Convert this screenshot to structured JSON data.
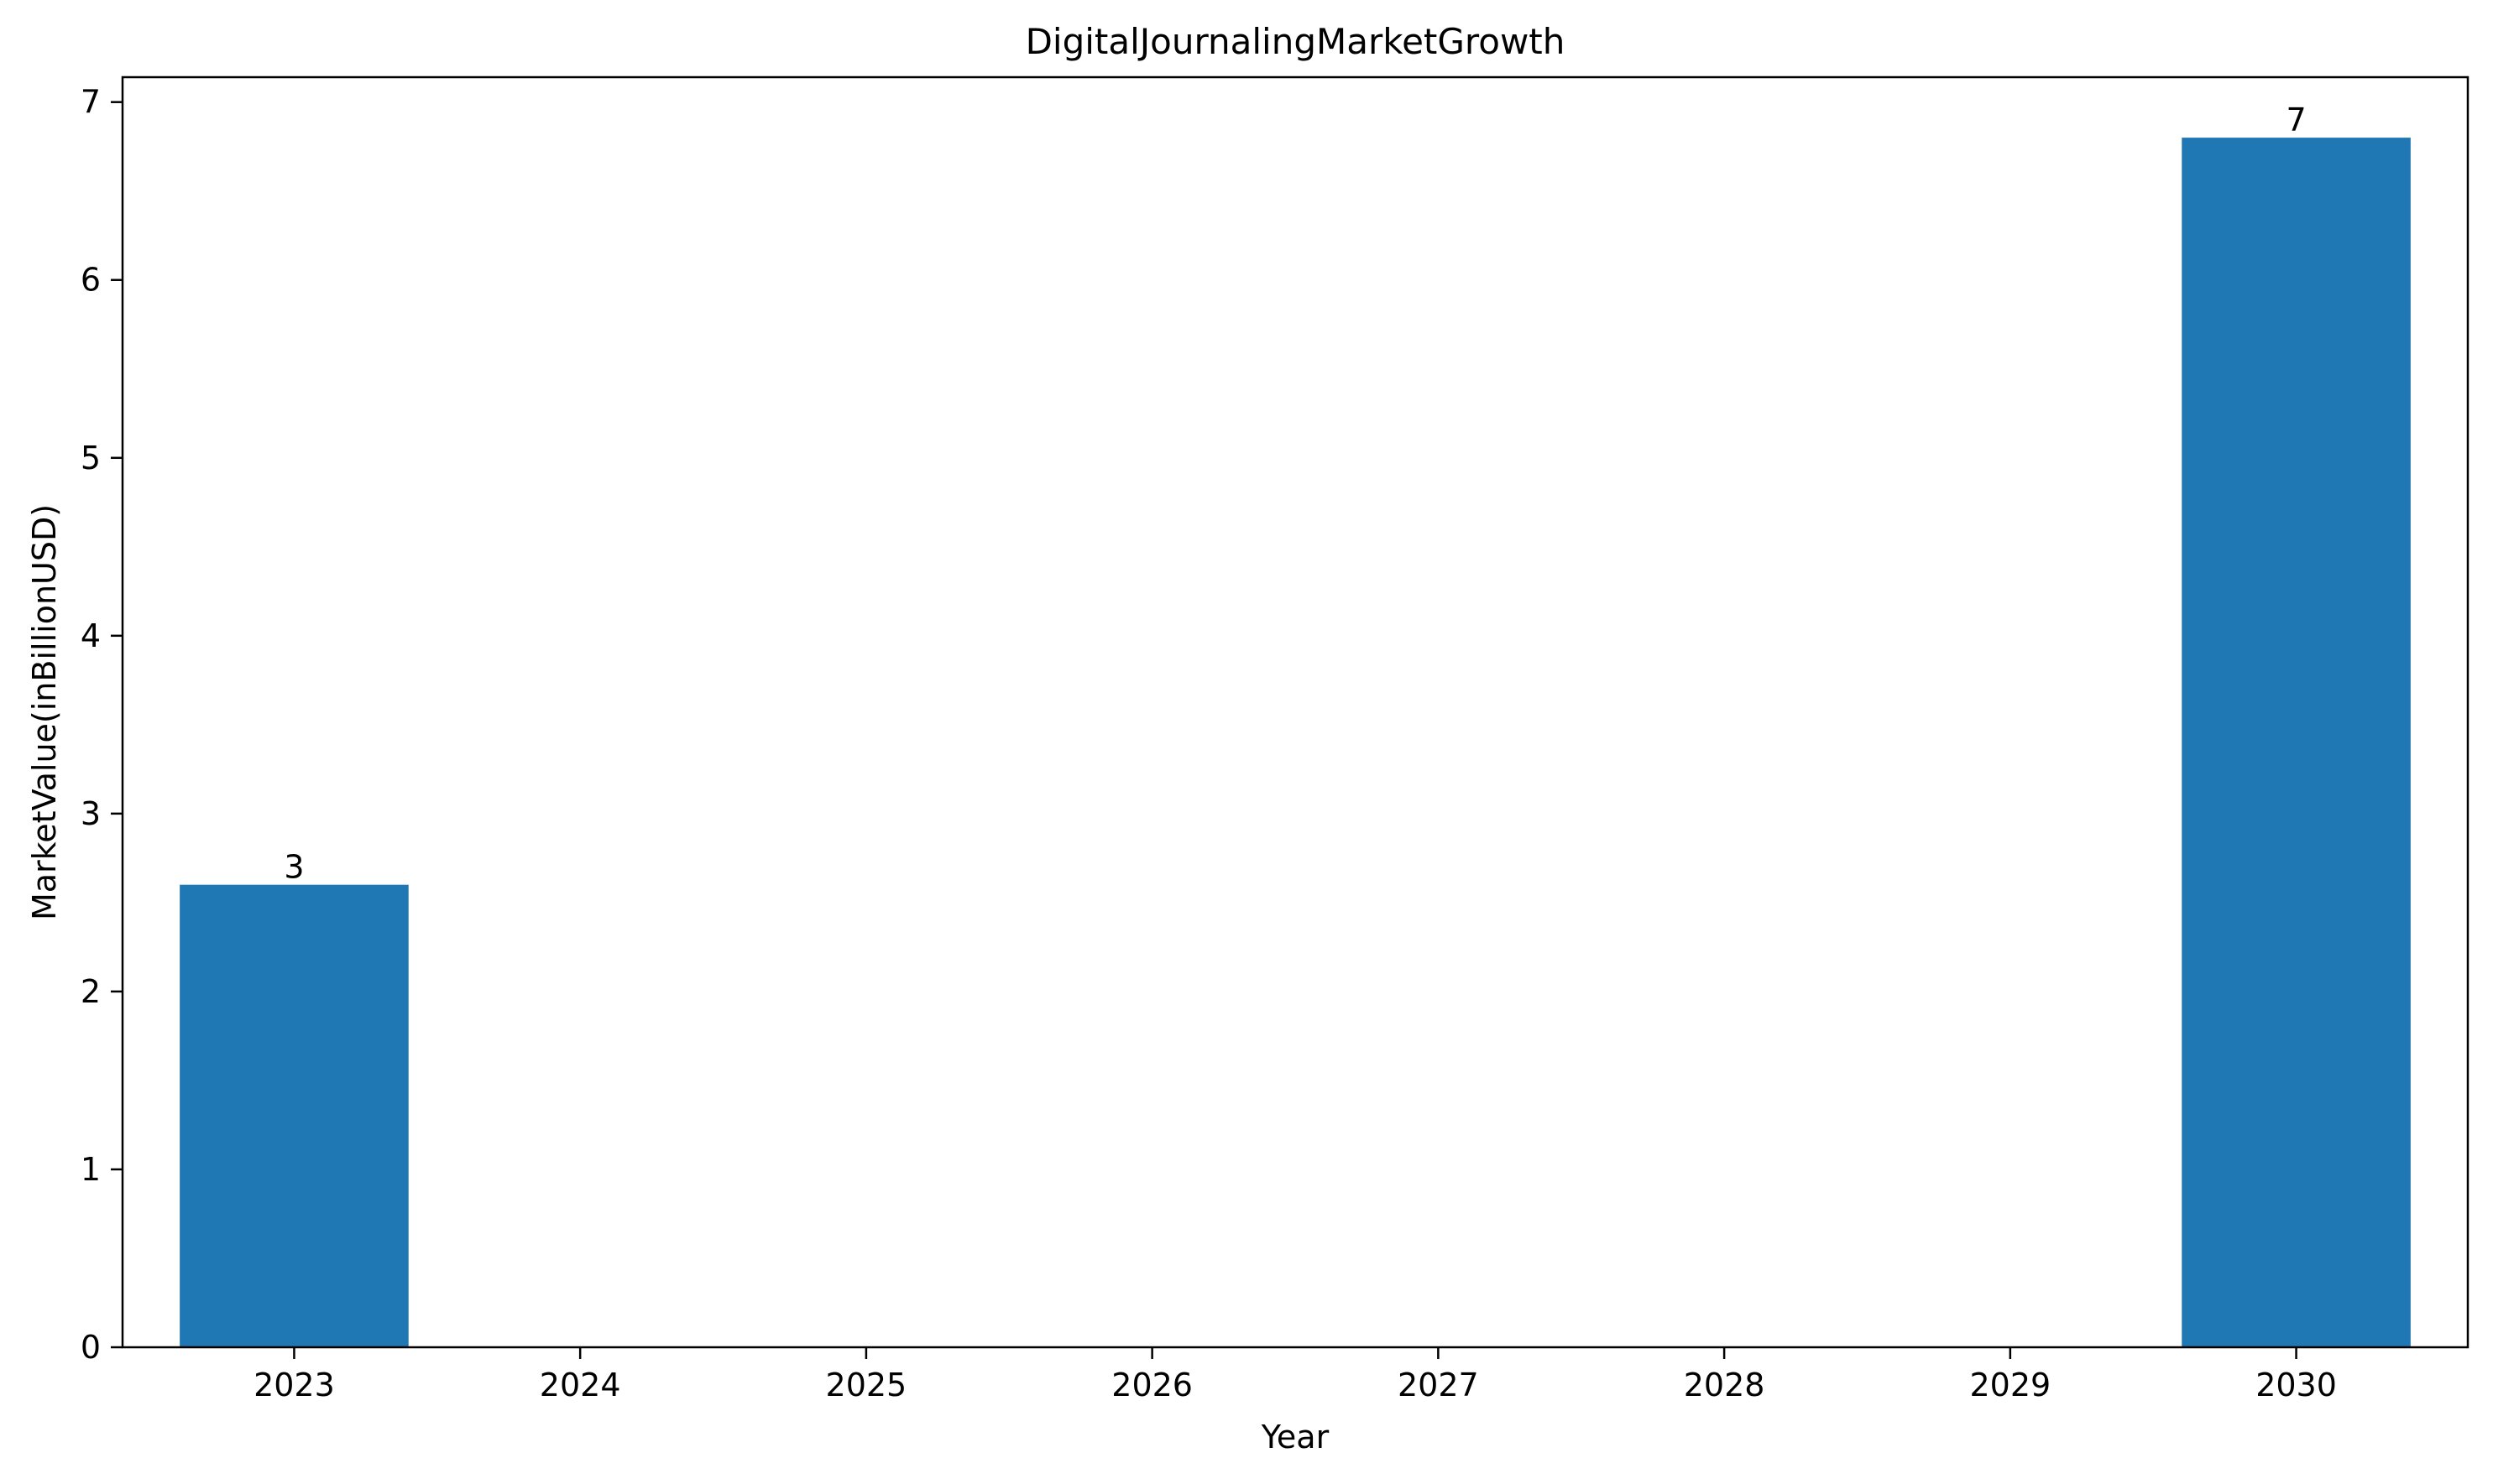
{
  "chart_data": {
    "type": "bar",
    "title": "DigitalJournalingMarketGrowth",
    "xlabel": "Year",
    "ylabel": "MarketValue(inBillionUSD)",
    "categories": [
      "2023",
      "2024",
      "2025",
      "2026",
      "2027",
      "2028",
      "2029",
      "2030"
    ],
    "series": [
      {
        "values": [
          2.6,
          null,
          null,
          null,
          null,
          null,
          null,
          6.8
        ],
        "data_labels": [
          "3",
          null,
          null,
          null,
          null,
          null,
          null,
          "7"
        ],
        "color": "#1f77b4"
      }
    ],
    "yticks": [
      0,
      1,
      2,
      3,
      4,
      5,
      6,
      7
    ],
    "ylim": [
      0,
      7.14
    ],
    "grid": false,
    "legend": "none"
  }
}
